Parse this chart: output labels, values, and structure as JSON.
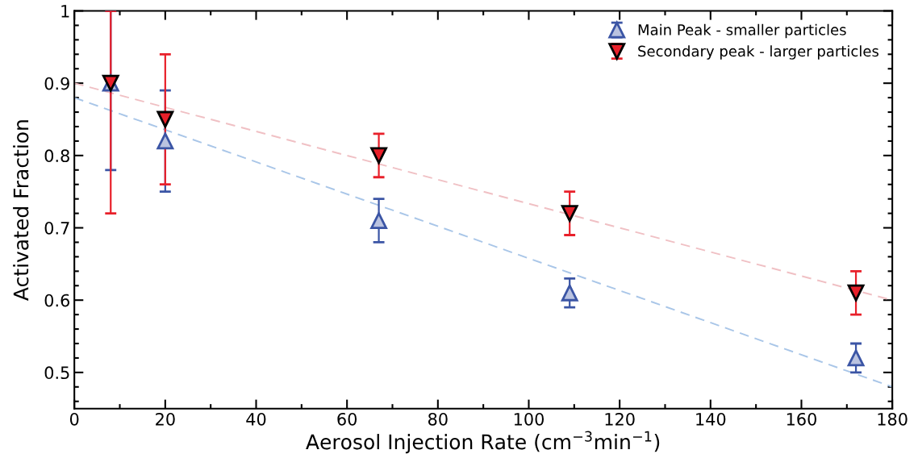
{
  "chart_data": {
    "type": "scatter",
    "xlabel": "Aerosol Injection Rate (cm$^{−3}$min$^{−1}$)",
    "ylabel": "Activated Fraction",
    "x": [
      8,
      20,
      67,
      109,
      172
    ],
    "series": [
      {
        "name": "Main Peak - smaller particles",
        "color": "#3b55a5",
        "marker": "triangle",
        "values": [
          0.9,
          0.82,
          0.71,
          0.61,
          0.52
        ],
        "errors": [
          [
            0.78,
            1.0
          ],
          0.07,
          0.03,
          0.02,
          0.02
        ]
      },
      {
        "name": "Secondary peak - larger particles",
        "color": "#e8202a",
        "marker": "triangle_down",
        "values": [
          0.9,
          0.85,
          0.8,
          0.72,
          0.61
        ],
        "errors": [
          [
            0.72,
            1.0
          ],
          0.09,
          0.03,
          0.03,
          0.03
        ]
      },
      {
        "type": "line",
        "color": "#a9c6e8",
        "line_style": "dashed",
        "x": [
          0,
          90,
          180
        ],
        "values": [
          0.88,
          0.68,
          0.48
        ]
      },
      {
        "type": "line",
        "color": "#f0c0c4",
        "line_style": "dashed",
        "x": [
          0,
          90,
          180
        ],
        "values": [
          0.9,
          0.75,
          0.6
        ]
      }
    ],
    "xlim": [
      0,
      180
    ],
    "xticks": [
      0,
      20,
      40,
      60,
      80,
      100,
      120,
      140,
      160,
      180
    ],
    "ylim": [
      0.45,
      1
    ],
    "yticks": [
      0.5,
      0.6,
      0.7,
      0.8,
      0.9,
      1
    ],
    "legend": "top right",
    "grid": false
  }
}
